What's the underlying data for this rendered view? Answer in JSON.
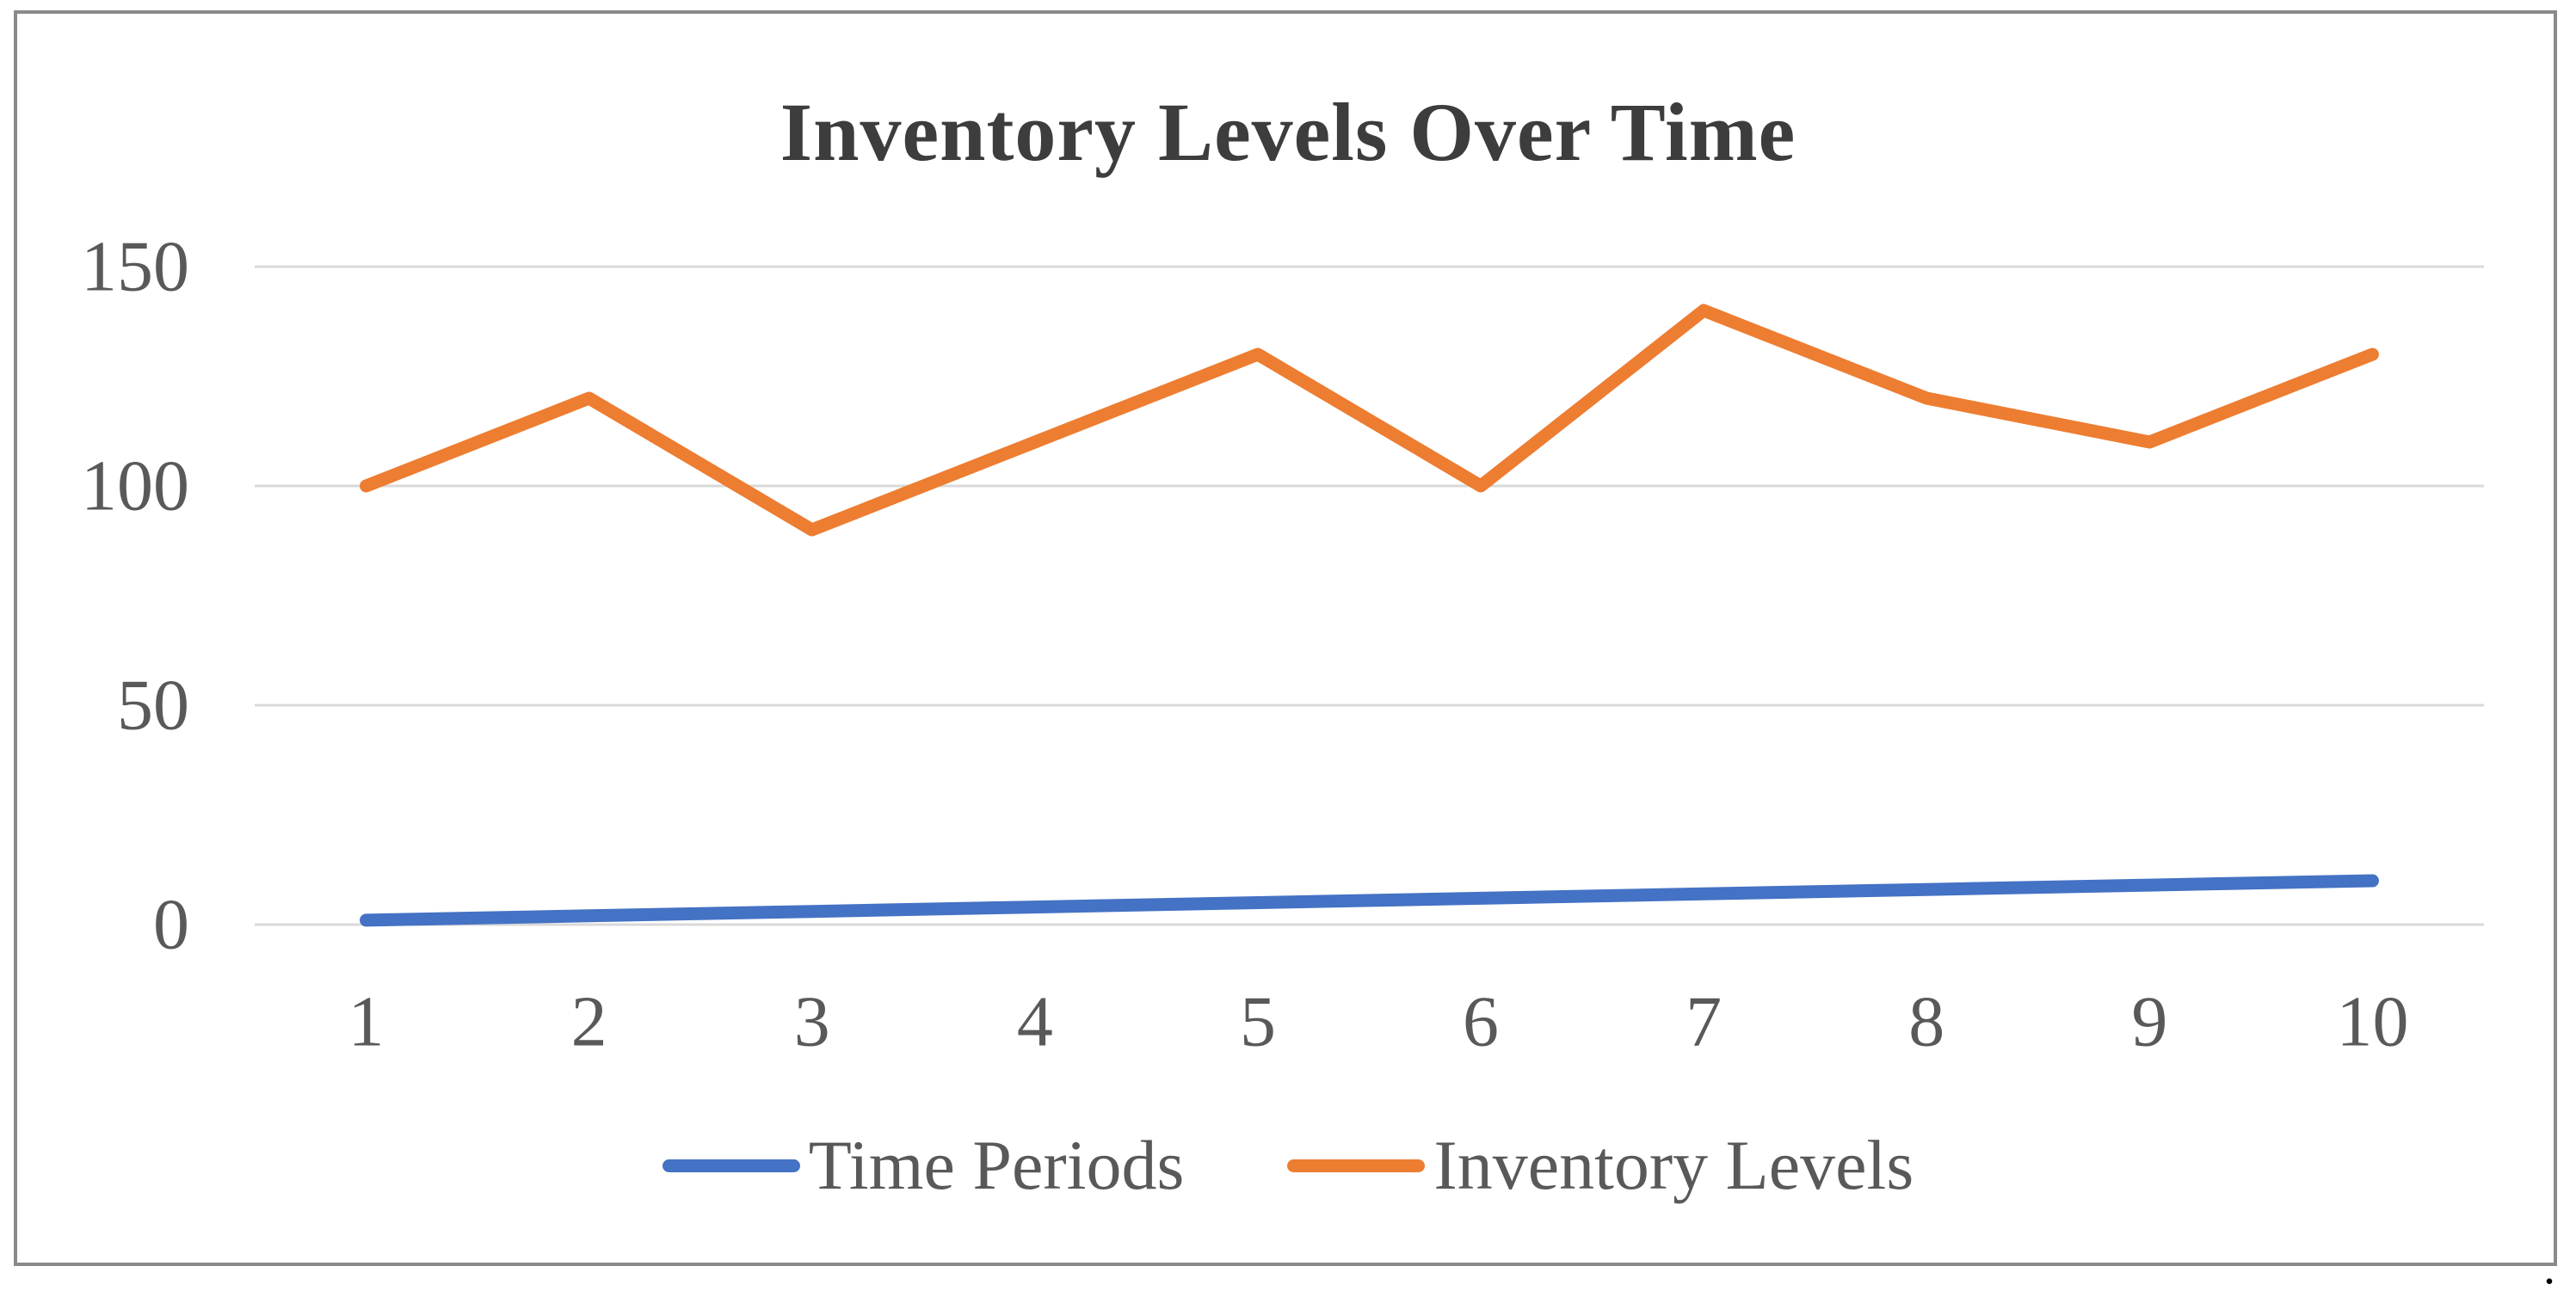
{
  "title": "Inventory Levels Over Time",
  "trailing_text": ".",
  "chart_data": {
    "type": "line",
    "title": "Inventory Levels Over Time",
    "categories": [
      1,
      2,
      3,
      4,
      5,
      6,
      7,
      8,
      9,
      10
    ],
    "series": [
      {
        "name": "Time Periods",
        "color": "#4472C4",
        "values": [
          1,
          2,
          3,
          4,
          5,
          6,
          7,
          8,
          9,
          10
        ]
      },
      {
        "name": "Inventory Levels",
        "color": "#ED7D31",
        "values": [
          100,
          120,
          90,
          110,
          130,
          100,
          140,
          120,
          110,
          130
        ]
      }
    ],
    "y_ticks": [
      0,
      50,
      100,
      150
    ],
    "ylim": [
      0,
      150
    ],
    "xlabel": "",
    "ylabel": "",
    "grid": true,
    "legend_position": "bottom"
  },
  "colors": {
    "gridline": "#D9D9D9",
    "axis_text": "#595959",
    "title_text": "#3D3D3D",
    "legend_text": "#595959",
    "border": "#8A8A8A",
    "background": "#FFFFFF"
  }
}
